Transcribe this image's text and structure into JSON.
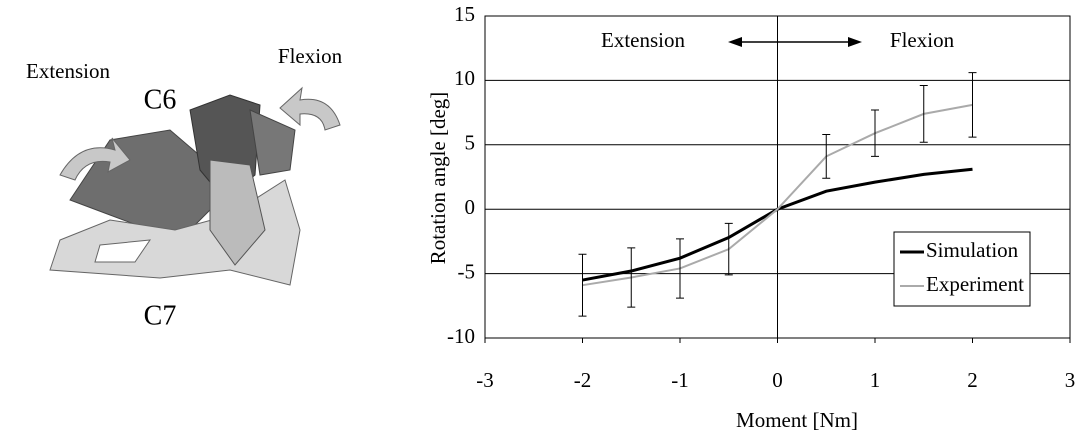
{
  "illustration": {
    "labels": [
      "Extension",
      "Flexion",
      "C6",
      "C7"
    ]
  },
  "chart_data": {
    "type": "line",
    "xlabel": "Moment [Nm]",
    "ylabel": "Rotation angle [deg]",
    "annotations": {
      "left": "Extension",
      "right": "Flexion"
    },
    "x": [
      -2,
      -1.5,
      -1,
      -0.5,
      0,
      0.5,
      1,
      1.5,
      2
    ],
    "xlim": [
      -3,
      3
    ],
    "xticks": [
      -3,
      -2,
      -1,
      0,
      1,
      2,
      3
    ],
    "ylim": [
      -10,
      15
    ],
    "yticks": [
      -10,
      -5,
      0,
      5,
      10,
      15
    ],
    "grid": "y",
    "legend": "lower right",
    "series": [
      {
        "name": "Simulation",
        "color": "#000000",
        "values": [
          -5.5,
          -4.8,
          -3.8,
          -2.2,
          0,
          1.4,
          2.1,
          2.7,
          3.1
        ]
      },
      {
        "name": "Experiment",
        "color": "#aaaaaa",
        "values": [
          -5.9,
          -5.3,
          -4.6,
          -3.1,
          0,
          4.1,
          5.9,
          7.4,
          8.1
        ],
        "errors": [
          2.4,
          2.3,
          2.3,
          2.0,
          null,
          1.7,
          1.8,
          2.2,
          2.5
        ]
      }
    ]
  }
}
